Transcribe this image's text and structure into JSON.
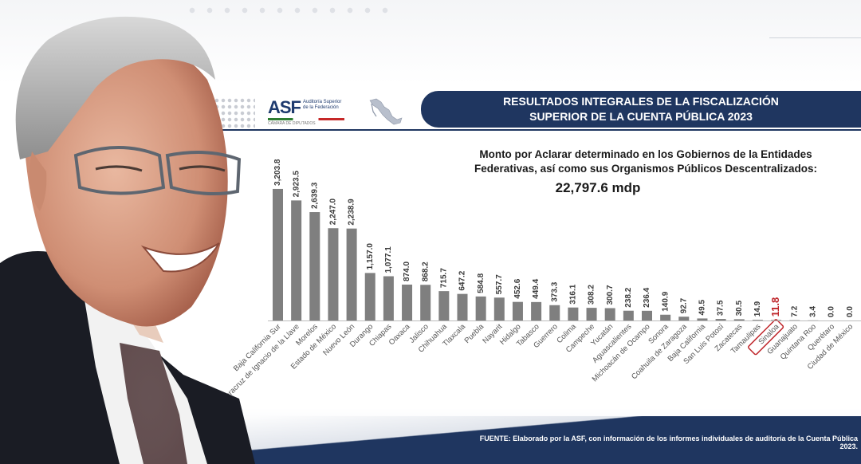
{
  "header": {
    "title_line1": "RESULTADOS INTEGRALES DE LA FISCALIZACIÓN",
    "title_line2": "SUPERIOR DE LA CUENTA PÚBLICA 2023",
    "logo_text": "ASF",
    "logo_subtitle": "Auditoría Superior de la Federación",
    "logo_footer": "CÁMARA DE DIPUTADOS"
  },
  "headline": {
    "line1": "Monto por Aclarar determinado en los Gobiernos de la Entidades",
    "line2": "Federativas, así como sus Organismos Públicos Descentralizados:",
    "total": "22,797.6 mdp"
  },
  "footer": {
    "source": "FUENTE: Elaborado por la ASF, con información de los informes individuales de auditoría de la Cuenta Pública 2023."
  },
  "colors": {
    "bar": "#7f7f7f",
    "highlight": "#c0282d",
    "banner": "#1f3660"
  },
  "chart_data": {
    "type": "bar",
    "categories": [
      "Baja California Sur",
      "Veracruz de Ignacio de la Llave",
      "Morelos",
      "Estado de México",
      "Nuevo León",
      "Durango",
      "Chiapas",
      "Oaxaca",
      "Jalisco",
      "Chihuahua",
      "Tlaxcala",
      "Puebla",
      "Nayarit",
      "Hidalgo",
      "Tabasco",
      "Guerrero",
      "Colima",
      "Campeche",
      "Yucatán",
      "Aguascalientes",
      "Michoacán de Ocampo",
      "Sonora",
      "Coahuila de Zaragoza",
      "Baja California",
      "San Luis Potosí",
      "Zacatecas",
      "Tamaulipas",
      "Sinaloa",
      "Guanajuato",
      "Quintana Roo",
      "Querétaro",
      "Ciudad de México"
    ],
    "values": [
      3203.8,
      2923.5,
      2639.3,
      2247.0,
      2238.9,
      1157.0,
      1077.1,
      874.0,
      868.2,
      715.7,
      647.2,
      584.8,
      557.7,
      452.6,
      449.4,
      373.3,
      316.1,
      308.2,
      300.7,
      238.2,
      236.4,
      140.9,
      92.7,
      49.5,
      37.5,
      30.5,
      14.9,
      11.8,
      7.2,
      3.4,
      0.0,
      0.0
    ],
    "labels": [
      "3,203.8",
      "2,923.5",
      "2,639.3",
      "2,247.0",
      "2,238.9",
      "1,157.0",
      "1,077.1",
      "874.0",
      "868.2",
      "715.7",
      "647.2",
      "584.8",
      "557.7",
      "452.6",
      "449.4",
      "373.3",
      "316.1",
      "308.2",
      "300.7",
      "238.2",
      "236.4",
      "140.9",
      "92.7",
      "49.5",
      "37.5",
      "30.5",
      "14.9",
      "11.8",
      "7.2",
      "3.4",
      "0.0",
      "0.0"
    ],
    "highlight": "Sinaloa",
    "ylim": [
      0,
      3300
    ],
    "grid": false,
    "title": "",
    "xlabel": "",
    "ylabel": ""
  }
}
